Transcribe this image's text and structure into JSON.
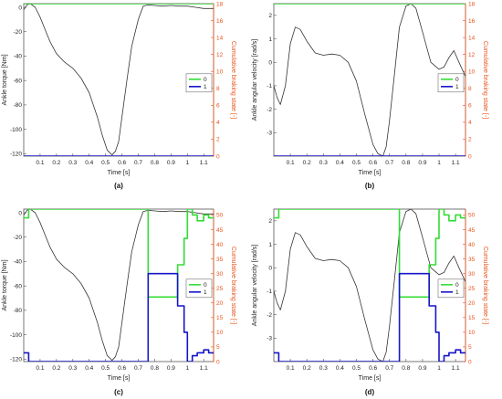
{
  "chart_data": [
    {
      "type": "line",
      "caption": "(a)",
      "xlabel": "Time [s]",
      "ylabel": "Ankle torque [Nm]",
      "y2label": "Cumulative braking state [-]",
      "xlim": [
        0,
        1.16
      ],
      "ylim": [
        -122,
        3
      ],
      "y2lim": [
        0,
        18
      ],
      "xticks": [
        "0.1",
        "0.2",
        "0.3",
        "0.4",
        "0.5",
        "0.6",
        "0.7",
        "0.8",
        "0.9",
        "1",
        "1.1"
      ],
      "yticks": [
        "0",
        "-20",
        "-40",
        "-60",
        "-80",
        "-100",
        "-120"
      ],
      "y2ticks": [
        "0",
        "2",
        "4",
        "6",
        "8",
        "10",
        "12",
        "14",
        "16",
        "18"
      ],
      "legend": [
        "0",
        "1"
      ],
      "legend_position": "middle-right",
      "colors": {
        "torque": "#333333",
        "state0": "#33dd33",
        "state1": "#1515c8",
        "right_axis": "#e8541c"
      },
      "series": [
        {
          "x": [
            0,
            0.02,
            0.04,
            0.07,
            0.1,
            0.13,
            0.16,
            0.2,
            0.25,
            0.3,
            0.35,
            0.4,
            0.45,
            0.48,
            0.51,
            0.54,
            0.56,
            0.58,
            0.6,
            0.63,
            0.66,
            0.7,
            0.73,
            0.76,
            0.8,
            0.85,
            0.9,
            0.95,
            1.0,
            1.05,
            1.1,
            1.16
          ],
          "y": [
            -2,
            2,
            3,
            0,
            -8,
            -18,
            -28,
            -38,
            -45,
            -50,
            -58,
            -70,
            -90,
            -105,
            -117,
            -121,
            -118,
            -110,
            -90,
            -60,
            -32,
            -10,
            1,
            2,
            1.5,
            1,
            1.5,
            1,
            1,
            0,
            -1,
            -1
          ]
        },
        {
          "x": [
            0,
            1.16
          ],
          "y": [
            18,
            18
          ]
        },
        {
          "x": [
            0,
            1.16
          ],
          "y": [
            0,
            0
          ]
        }
      ]
    },
    {
      "type": "line",
      "caption": "(b)",
      "xlabel": "Time [s]",
      "ylabel": "Ankle angular velocity [rad/s]",
      "y2label": "Cumulative braking state [-]",
      "xlim": [
        0,
        1.16
      ],
      "ylim": [
        -4,
        2.5
      ],
      "y2lim": [
        0,
        18
      ],
      "xticks": [
        "0.1",
        "0.2",
        "0.3",
        "0.4",
        "0.5",
        "0.6",
        "0.7",
        "0.8",
        "0.9",
        "1",
        "1.1"
      ],
      "yticks": [
        "2",
        "1",
        "0",
        "-1",
        "-2",
        "-3"
      ],
      "y2ticks": [
        "0",
        "2",
        "4",
        "6",
        "8",
        "10",
        "12",
        "14",
        "16",
        "18"
      ],
      "legend": [
        "0",
        "1"
      ],
      "legend_position": "middle-right",
      "colors": {
        "torque": "#333333",
        "state0": "#33dd33",
        "state1": "#1515c8",
        "right_axis": "#e8541c"
      },
      "series": [
        {
          "x": [
            0,
            0.02,
            0.04,
            0.07,
            0.1,
            0.13,
            0.16,
            0.2,
            0.25,
            0.3,
            0.35,
            0.4,
            0.45,
            0.5,
            0.55,
            0.6,
            0.63,
            0.66,
            0.68,
            0.7,
            0.73,
            0.76,
            0.8,
            0.83,
            0.86,
            0.9,
            0.95,
            1.0,
            1.03,
            1.06,
            1.09,
            1.12,
            1.16
          ],
          "y": [
            -1,
            -1.5,
            -1.8,
            -1,
            0.8,
            1.5,
            1.4,
            0.9,
            0.4,
            0.3,
            0.35,
            0.3,
            0,
            -0.8,
            -2.2,
            -3.5,
            -3.9,
            -4,
            -3.6,
            -2.5,
            -0.5,
            1.5,
            2.4,
            2.5,
            2.3,
            1.3,
            0,
            -0.3,
            -0.2,
            0.2,
            0.5,
            0,
            -0.6
          ]
        },
        {
          "x": [
            0,
            1.16
          ],
          "y": [
            18,
            18
          ]
        },
        {
          "x": [
            0,
            1.16
          ],
          "y": [
            0,
            0
          ]
        }
      ]
    },
    {
      "type": "line",
      "caption": "(c)",
      "xlabel": "Time [s]",
      "ylabel": "Ankle torque [Nm]",
      "y2label": "Cumulative braking state [-]",
      "xlim": [
        0,
        1.16
      ],
      "ylim": [
        -122,
        3
      ],
      "y2lim": [
        0,
        52
      ],
      "xticks": [
        "0.1",
        "0.2",
        "0.3",
        "0.4",
        "0.5",
        "0.6",
        "0.7",
        "0.8",
        "0.9",
        "1",
        "1.1"
      ],
      "yticks": [
        "0",
        "-20",
        "-40",
        "-60",
        "-80",
        "-100",
        "-120"
      ],
      "y2ticks": [
        "0",
        "5",
        "10",
        "15",
        "20",
        "25",
        "30",
        "35",
        "40",
        "45",
        "50"
      ],
      "legend": [
        "0",
        "1"
      ],
      "legend_position": "middle-right",
      "colors": {
        "torque": "#333333",
        "state0": "#33dd33",
        "state1": "#1515c8",
        "right_axis": "#e8541c"
      },
      "series": [
        {
          "x": [
            0,
            0.02,
            0.04,
            0.07,
            0.1,
            0.13,
            0.16,
            0.2,
            0.25,
            0.3,
            0.35,
            0.4,
            0.45,
            0.48,
            0.51,
            0.54,
            0.56,
            0.58,
            0.6,
            0.63,
            0.66,
            0.7,
            0.73,
            0.76,
            0.8,
            0.85,
            0.9,
            0.95,
            1.0,
            1.05,
            1.1,
            1.16
          ],
          "y": [
            -2,
            2,
            3,
            0,
            -8,
            -18,
            -28,
            -38,
            -45,
            -50,
            -58,
            -70,
            -90,
            -105,
            -117,
            -121,
            -118,
            -110,
            -90,
            -60,
            -32,
            -10,
            1,
            2,
            1.5,
            1,
            1.5,
            1,
            1,
            0,
            -1,
            -1
          ]
        },
        {
          "x": [
            0,
            0.03,
            0.03,
            0.76,
            0.76,
            0.94,
            0.94,
            0.98,
            0.98,
            1.0,
            1.0,
            1.03,
            1.03,
            1.06,
            1.06,
            1.1,
            1.1,
            1.13,
            1.13,
            1.16
          ],
          "y": [
            49,
            49,
            52,
            52,
            22,
            22,
            33,
            33,
            42,
            42,
            52,
            52,
            50,
            50,
            48,
            48,
            50,
            50,
            49,
            49
          ]
        },
        {
          "x": [
            0,
            0.03,
            0.03,
            0.76,
            0.76,
            0.94,
            0.94,
            0.98,
            0.98,
            1.0,
            1.0,
            1.03,
            1.03,
            1.06,
            1.06,
            1.1,
            1.1,
            1.13,
            1.13,
            1.16
          ],
          "y": [
            3,
            3,
            0,
            0,
            30,
            30,
            19,
            19,
            10,
            10,
            0,
            0,
            2,
            2,
            3,
            3,
            4,
            4,
            3,
            3
          ]
        }
      ]
    },
    {
      "type": "line",
      "caption": "(d)",
      "xlabel": "Time [s]",
      "ylabel": "Ankle angular velocity [rad/s]",
      "y2label": "Cumulative braking state [-]",
      "xlim": [
        0,
        1.16
      ],
      "ylim": [
        -4,
        2.5
      ],
      "y2lim": [
        0,
        52
      ],
      "xticks": [
        "0.1",
        "0.2",
        "0.3",
        "0.4",
        "0.5",
        "0.6",
        "0.7",
        "0.8",
        "0.9",
        "1",
        "1.1"
      ],
      "yticks": [
        "2",
        "1",
        "0",
        "-1",
        "-2",
        "-3"
      ],
      "y2ticks": [
        "0",
        "5",
        "10",
        "15",
        "20",
        "25",
        "30",
        "35",
        "40",
        "45",
        "50"
      ],
      "legend": [
        "0",
        "1"
      ],
      "legend_position": "middle-right",
      "colors": {
        "torque": "#333333",
        "state0": "#33dd33",
        "state1": "#1515c8",
        "right_axis": "#e8541c"
      },
      "series": [
        {
          "x": [
            0,
            0.02,
            0.04,
            0.07,
            0.1,
            0.13,
            0.16,
            0.2,
            0.25,
            0.3,
            0.35,
            0.4,
            0.45,
            0.5,
            0.55,
            0.6,
            0.63,
            0.66,
            0.68,
            0.7,
            0.73,
            0.76,
            0.8,
            0.83,
            0.86,
            0.9,
            0.95,
            1.0,
            1.03,
            1.06,
            1.09,
            1.12,
            1.16
          ],
          "y": [
            -1,
            -1.5,
            -1.8,
            -1,
            0.8,
            1.5,
            1.4,
            0.9,
            0.4,
            0.3,
            0.35,
            0.3,
            0,
            -0.8,
            -2.2,
            -3.5,
            -3.9,
            -4,
            -3.6,
            -2.5,
            -0.5,
            1.5,
            2.4,
            2.5,
            2.3,
            1.3,
            0,
            -0.3,
            -0.2,
            0.2,
            0.5,
            0,
            -0.6
          ]
        },
        {
          "x": [
            0,
            0.03,
            0.03,
            0.76,
            0.76,
            0.94,
            0.94,
            0.98,
            0.98,
            1.0,
            1.0,
            1.03,
            1.03,
            1.06,
            1.06,
            1.1,
            1.1,
            1.13,
            1.13,
            1.16
          ],
          "y": [
            49,
            49,
            52,
            52,
            22,
            22,
            33,
            33,
            42,
            42,
            52,
            52,
            50,
            50,
            48,
            48,
            50,
            50,
            49,
            49
          ]
        },
        {
          "x": [
            0,
            0.03,
            0.03,
            0.76,
            0.76,
            0.94,
            0.94,
            0.98,
            0.98,
            1.0,
            1.0,
            1.03,
            1.03,
            1.06,
            1.06,
            1.1,
            1.1,
            1.13,
            1.13,
            1.16
          ],
          "y": [
            3,
            3,
            0,
            0,
            30,
            30,
            19,
            19,
            10,
            10,
            0,
            0,
            2,
            2,
            3,
            3,
            4,
            4,
            3,
            3
          ]
        }
      ]
    }
  ]
}
